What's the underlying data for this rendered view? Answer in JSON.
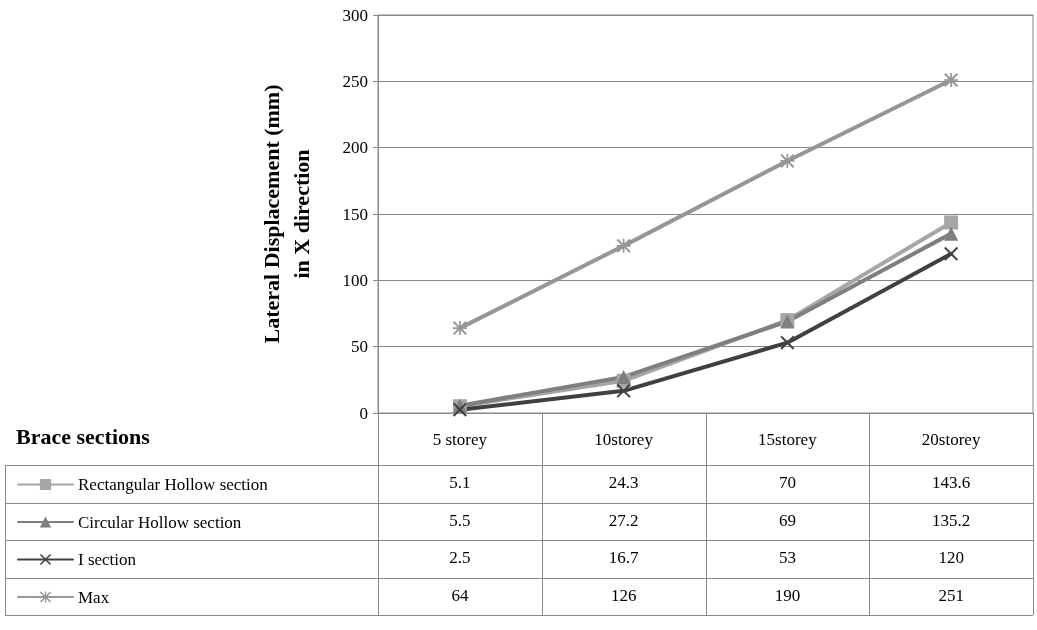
{
  "chart_data": {
    "type": "line",
    "ylabel": "Lateral Displacement (mm)\nin X direction",
    "legend_title": "Brace sections",
    "categories": [
      "5 storey",
      "10storey",
      "15storey",
      "20storey"
    ],
    "series": [
      {
        "name": "Rectangular Hollow section",
        "color": "#a6a6a6",
        "marker": "square",
        "values": [
          5.1,
          24.3,
          70,
          143.6
        ]
      },
      {
        "name": "Circular Hollow section",
        "color": "#7f7f7f",
        "marker": "triangle",
        "values": [
          5.5,
          27.2,
          69,
          135.2
        ]
      },
      {
        "name": "I section",
        "color": "#404040",
        "marker": "cross",
        "values": [
          2.5,
          16.7,
          53,
          120
        ]
      },
      {
        "name": "Max",
        "color": "#969696",
        "marker": "star",
        "values": [
          64,
          126,
          190,
          251
        ]
      }
    ],
    "ylim": [
      0,
      300
    ],
    "yticks": [
      0,
      50,
      100,
      150,
      200,
      250,
      300
    ],
    "grid": "y",
    "legend": "bottom",
    "data_labels": true,
    "line_style": "solid"
  }
}
